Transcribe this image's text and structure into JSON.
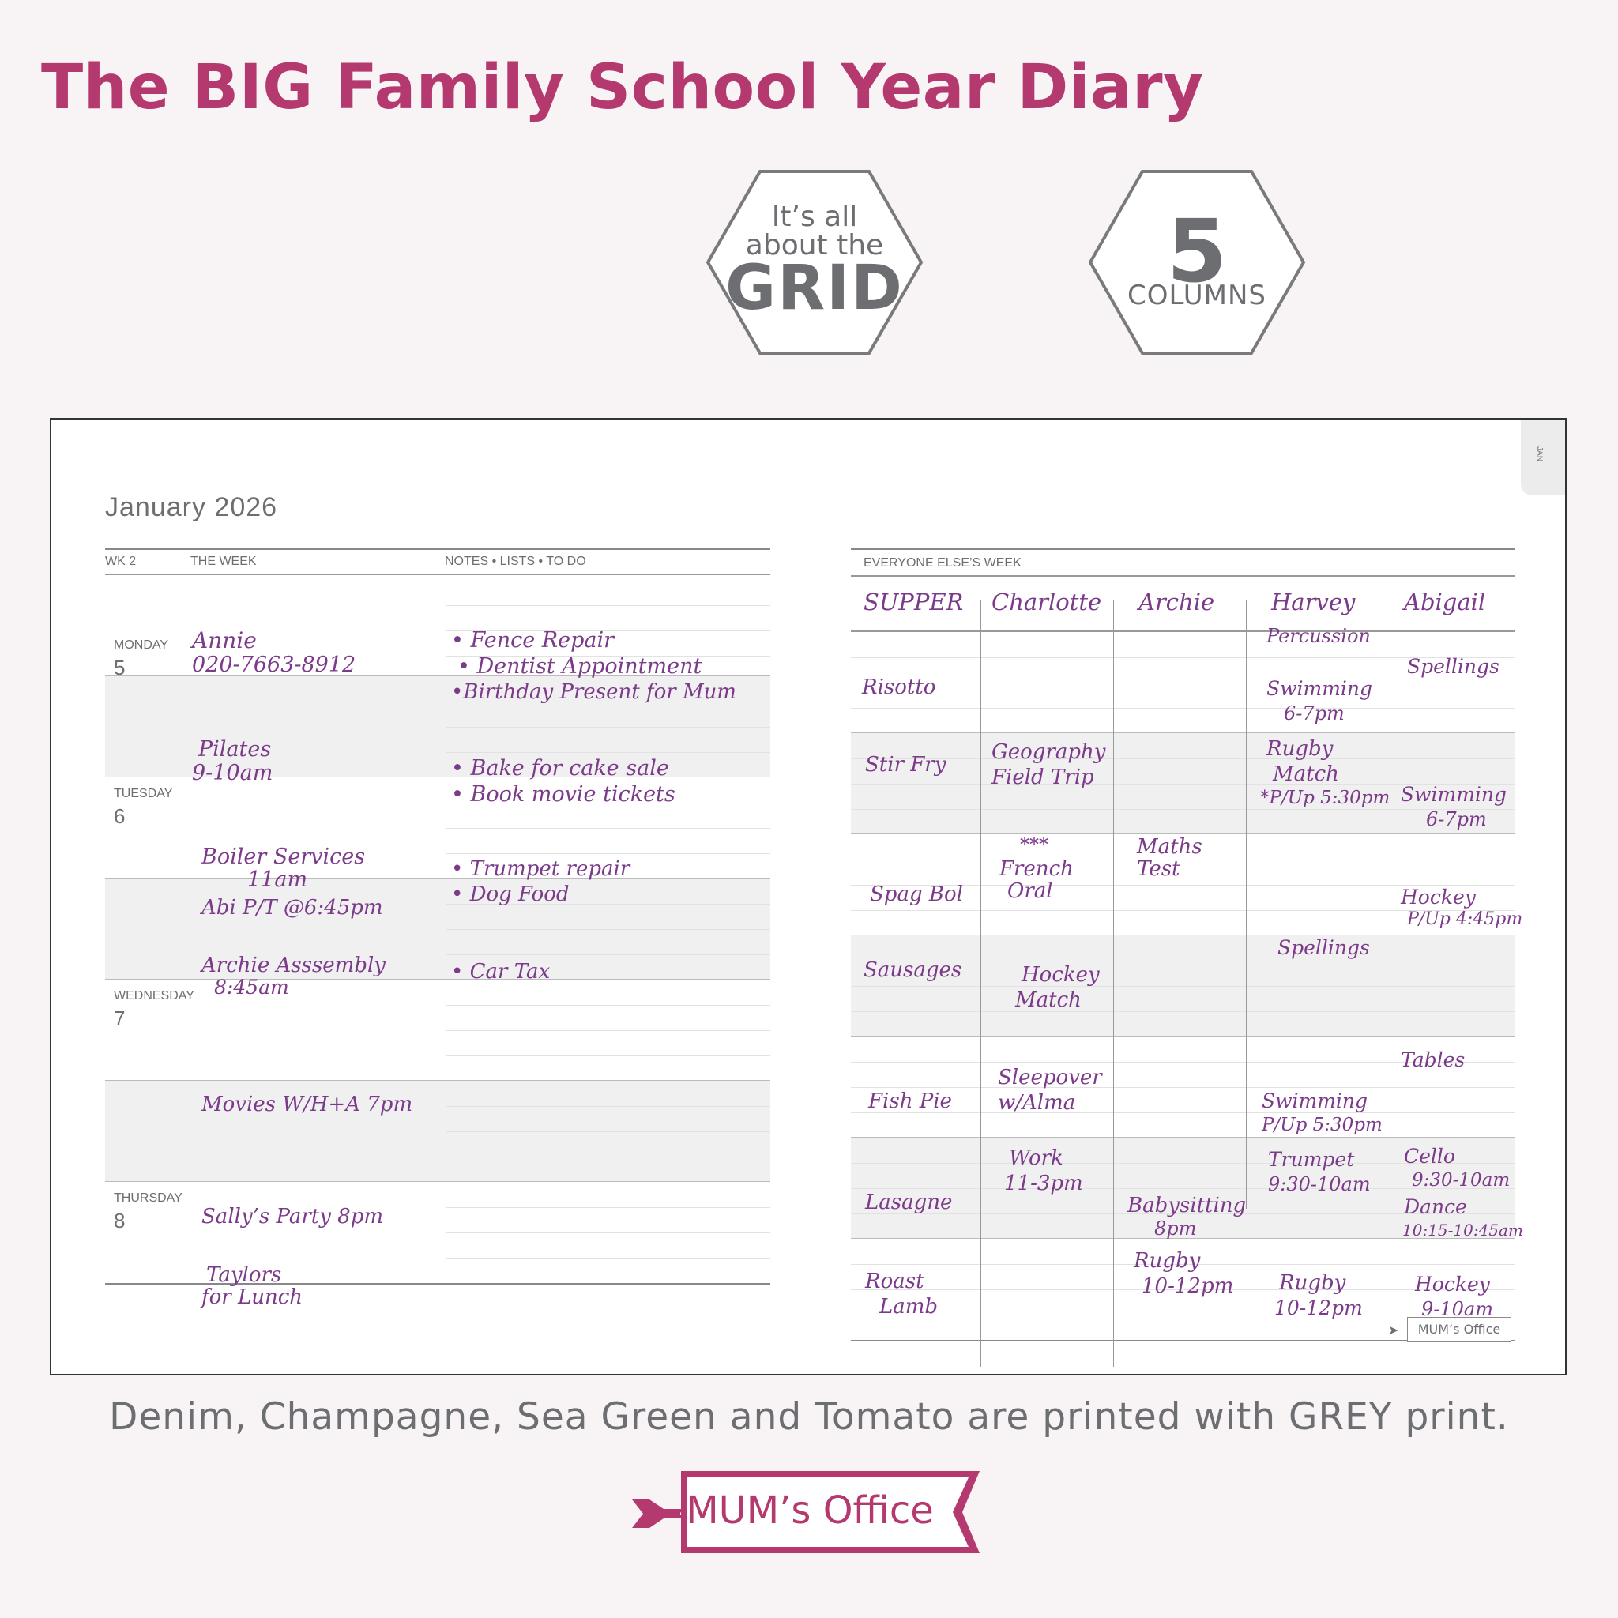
{
  "headline": "The BIG Family School Year Diary",
  "badges": {
    "grid": {
      "line1": "It’s all",
      "line2": "about the",
      "line3": "GRID"
    },
    "columns": {
      "number": "5",
      "label": "COLUMNS"
    }
  },
  "side_tab": "JAN",
  "diary": {
    "month": "January 2026",
    "left_header": {
      "week": "WK 2",
      "the_week": "THE WEEK",
      "notes": "NOTES • LISTS • TO DO"
    },
    "days": {
      "monday": {
        "name": "MONDAY",
        "num": "5"
      },
      "tuesday": {
        "name": "TUESDAY",
        "num": "6"
      },
      "wednesday": {
        "name": "WEDNESDAY",
        "num": "7"
      },
      "thursday": {
        "name": "THURSDAY",
        "num": "8"
      }
    },
    "week_entries": {
      "mon_am_1": "Annie",
      "mon_am_2": "020-7663-8912",
      "mon_pm_1": "Pilates",
      "mon_pm_2": "9-10am",
      "tue_am_1": "Boiler Services",
      "tue_am_2": "11am",
      "tue_am_3": "Abi P/T @6:45pm",
      "tue_pm_1": "Archie Asssembly",
      "tue_pm_2": "8:45am",
      "wed_am": "Movies W/H+A 7pm",
      "wed_pm": "Sally’s Party 8pm",
      "thu_1": "Taylors",
      "thu_2": "for Lunch"
    },
    "notes": {
      "n1": "• Fence Repair",
      "n2": "• Dentist Appointment",
      "n3": "•Birthday Present for Mum",
      "n4": "• Bake for cake sale",
      "n5": "• Book movie tickets",
      "n6": "• Trumpet repair",
      "n7": "•  Dog Food",
      "n8": "• Car Tax"
    },
    "right_header": "EVERYONE ELSE’S WEEK",
    "columns": [
      "SUPPER",
      "Charlotte",
      "Archie",
      "Harvey",
      "Abigail"
    ],
    "grid": {
      "supper": [
        "Risotto",
        "Stir Fry",
        "Spag Bol",
        "Sausages",
        "Fish Pie",
        "Lasagne",
        "Roast",
        "Lamb"
      ],
      "charlotte": [
        "Geography",
        "Field Trip",
        "***",
        "French",
        "Oral",
        "Hockey",
        "Match",
        "Sleepover",
        "w/Alma",
        "Work",
        "11-3pm"
      ],
      "archie": [
        "Maths",
        "Test",
        "Babysitting",
        "8pm",
        "Rugby",
        "10-12pm"
      ],
      "harvey": [
        "Percussion",
        "Swimming",
        "6-7pm",
        "Rugby",
        "Match",
        "*P/Up 5:30pm",
        "Spellings",
        "Swimming",
        "P/Up 5:30pm",
        "Trumpet",
        "9:30-10am",
        "Rugby",
        "10-12pm"
      ],
      "abigail": [
        "Spellings",
        "Swimming",
        "6-7pm",
        "Hockey",
        "P/Up 4:45pm",
        "Tables",
        "Cello",
        "9:30-10am",
        "Dance",
        "10:15-10:45am",
        "Hockey",
        "9-10am"
      ]
    },
    "mini_brand": "MUM’s Office"
  },
  "caption": "Denim, Champagne, Sea Green and Tomato are printed with GREY print.",
  "brand": "MUM’s Office",
  "colors": {
    "brand": "#b4396e",
    "ink": "#7c3b8a",
    "grey": "#6d6e71"
  }
}
